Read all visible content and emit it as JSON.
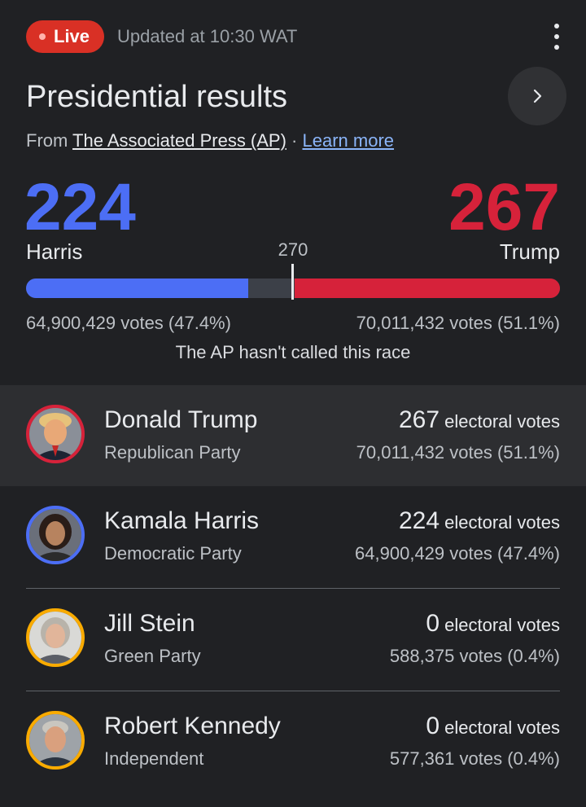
{
  "header": {
    "live_label": "Live",
    "updated_text": "Updated at 10:30 WAT",
    "title": "Presidential results",
    "source_prefix": "From ",
    "source_link": "The Associated Press (AP)",
    "source_separator": " · ",
    "learn_more": "Learn more"
  },
  "tally": {
    "harris": {
      "ev": "224",
      "name": "Harris",
      "votes": "64,900,429 votes (47.4%)",
      "ev_value": 224,
      "color": "#4c6ef5"
    },
    "trump": {
      "ev": "267",
      "name": "Trump",
      "votes": "70,011,432 votes (51.1%)",
      "ev_value": 267,
      "color": "#d6223a"
    },
    "threshold": "270",
    "total_ev": 538,
    "status": "The AP hasn't called this race"
  },
  "candidates": [
    {
      "name": "Donald Trump",
      "party": "Republican Party",
      "ev": "267",
      "ev_suffix": " electoral votes",
      "votes": "70,011,432 votes (51.1%)",
      "ring": "#d6223a",
      "highlighted": true
    },
    {
      "name": "Kamala Harris",
      "party": "Democratic Party",
      "ev": "224",
      "ev_suffix": " electoral votes",
      "votes": "64,900,429 votes (47.4%)",
      "ring": "#4c6ef5",
      "highlighted": false
    },
    {
      "name": "Jill Stein",
      "party": "Green Party",
      "ev": "0",
      "ev_suffix": " electoral votes",
      "votes": "588,375 votes (0.4%)",
      "ring": "#f9ab00",
      "highlighted": false
    },
    {
      "name": "Robert Kennedy",
      "party": "Independent",
      "ev": "0",
      "ev_suffix": " electoral votes",
      "votes": "577,361 votes (0.4%)",
      "ring": "#f9ab00",
      "highlighted": false
    }
  ]
}
